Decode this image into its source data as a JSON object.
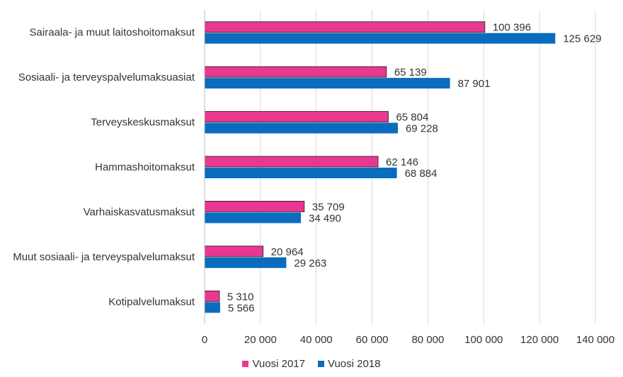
{
  "chart_data": {
    "type": "bar",
    "orientation": "horizontal",
    "categories": [
      "Sairaala- ja muut laitoshoitomaksut",
      "Sosiaali- ja terveyspalvelumaksuasiat",
      "Terveyskeskusmaksut",
      "Hammashoitomaksut",
      "Varhaiskasvatusmaksut",
      "Muut sosiaali- ja terveyspalvelumaksut",
      "Kotipalvelumaksut"
    ],
    "series": [
      {
        "name": "Vuosi 2017",
        "color": "#e8388f",
        "values": [
          100396,
          65139,
          65804,
          62146,
          35709,
          20964,
          5310
        ],
        "labels": [
          "100 396",
          "65 139",
          "65 804",
          "62 146",
          "35 709",
          "20 964",
          "5 310"
        ]
      },
      {
        "name": "Vuosi 2018",
        "color": "#0a6cbf",
        "values": [
          125629,
          87901,
          69228,
          68884,
          34490,
          29263,
          5566
        ],
        "labels": [
          "125 629",
          "87 901",
          "69 228",
          "68 884",
          "34 490",
          "29 263",
          "5 566"
        ]
      }
    ],
    "xlim": [
      0,
      140000
    ],
    "xticks": [
      0,
      20000,
      40000,
      60000,
      80000,
      100000,
      120000,
      140000
    ],
    "xtick_labels": [
      "0",
      "20 000",
      "40 000",
      "60 000",
      "80 000",
      "100 000",
      "120 000",
      "140 000"
    ],
    "grid": true,
    "legend": "bottom"
  }
}
